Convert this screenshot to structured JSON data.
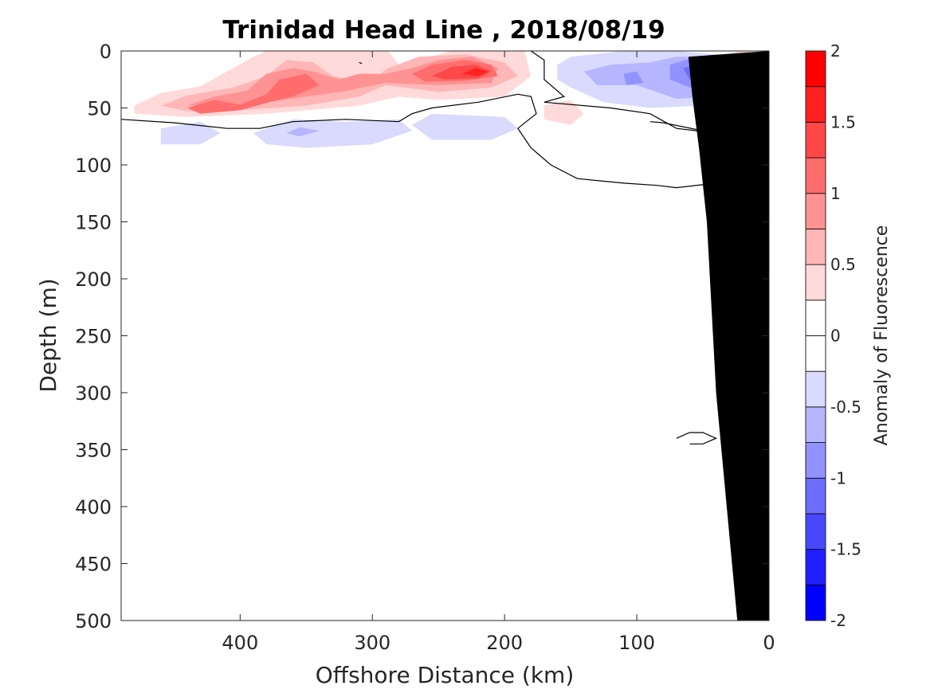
{
  "chart_data": {
    "type": "heatmap",
    "title": "Trinidad Head Line , 2018/08/19",
    "xlabel": "Offshore Distance (km)",
    "ylabel": "Depth (m)",
    "xlim": [
      490,
      0
    ],
    "ylim": [
      0,
      500
    ],
    "x_reversed": true,
    "y_reversed": true,
    "x_ticks": [
      400,
      300,
      200,
      100,
      0
    ],
    "y_ticks": [
      0,
      50,
      100,
      150,
      200,
      250,
      300,
      350,
      400,
      450,
      500
    ],
    "colorbar": {
      "label": "Anomaly of Fluorescence",
      "ticks": [
        2,
        1.5,
        1,
        0.5,
        0,
        -0.5,
        -1,
        -1.5,
        -2
      ],
      "levels": [
        -2,
        -1.75,
        -1.5,
        -1.25,
        -1,
        -0.75,
        -0.5,
        -0.25,
        0,
        0.25,
        0.5,
        0.75,
        1,
        1.25,
        1.5,
        1.75,
        2
      ],
      "colors": [
        "#0000ff",
        "#2020ff",
        "#4848ff",
        "#6d6dff",
        "#9292ff",
        "#b6b6ff",
        "#dadaff",
        "#ffffff",
        "#ffffff",
        "#ffdada",
        "#ffb6b6",
        "#ff9292",
        "#ff6d6d",
        "#ff4848",
        "#ff2020",
        "#ff0000"
      ]
    },
    "zero_contour_color": "#000000",
    "bathymetry_color": "#000000",
    "bathymetry": [
      [
        24,
        500
      ],
      [
        40,
        300
      ],
      [
        47,
        150
      ],
      [
        53,
        85
      ],
      [
        58,
        40
      ],
      [
        61,
        5
      ]
    ],
    "anomaly_regions": [
      {
        "level": 0.25,
        "polygon": [
          [
            480,
            48
          ],
          [
            460,
            37
          ],
          [
            430,
            31
          ],
          [
            410,
            18
          ],
          [
            390,
            5
          ],
          [
            380,
            0
          ],
          [
            288,
            0
          ],
          [
            280,
            12
          ],
          [
            265,
            8
          ],
          [
            240,
            0
          ],
          [
            185,
            0
          ],
          [
            180,
            22
          ],
          [
            200,
            40
          ],
          [
            250,
            43
          ],
          [
            280,
            40
          ],
          [
            310,
            48
          ],
          [
            380,
            55
          ],
          [
            440,
            58
          ],
          [
            480,
            55
          ]
        ]
      },
      {
        "level": 0.5,
        "polygon": [
          [
            460,
            48
          ],
          [
            440,
            39
          ],
          [
            405,
            32
          ],
          [
            380,
            22
          ],
          [
            365,
            8
          ],
          [
            345,
            10
          ],
          [
            330,
            22
          ],
          [
            300,
            28
          ],
          [
            290,
            16
          ],
          [
            265,
            5
          ],
          [
            230,
            3
          ],
          [
            200,
            10
          ],
          [
            190,
            22
          ],
          [
            210,
            32
          ],
          [
            250,
            36
          ],
          [
            290,
            30
          ],
          [
            310,
            40
          ],
          [
            350,
            48
          ],
          [
            400,
            52
          ],
          [
            440,
            53
          ]
        ]
      },
      {
        "level": 0.75,
        "polygon": [
          [
            440,
            48
          ],
          [
            420,
            40
          ],
          [
            395,
            35
          ],
          [
            380,
            20
          ],
          [
            360,
            15
          ],
          [
            345,
            18
          ],
          [
            325,
            25
          ],
          [
            310,
            20
          ],
          [
            290,
            20
          ],
          [
            270,
            15
          ],
          [
            250,
            8
          ],
          [
            225,
            5
          ],
          [
            205,
            15
          ],
          [
            210,
            28
          ],
          [
            250,
            30
          ],
          [
            290,
            28
          ],
          [
            320,
            35
          ],
          [
            380,
            45
          ],
          [
            410,
            48
          ]
        ]
      },
      {
        "level": 1.0,
        "polygon": [
          [
            440,
            50
          ],
          [
            420,
            43
          ],
          [
            400,
            47
          ],
          [
            380,
            38
          ],
          [
            370,
            25
          ],
          [
            350,
            20
          ],
          [
            340,
            30
          ],
          [
            360,
            40
          ],
          [
            378,
            45
          ],
          [
            400,
            52
          ],
          [
            430,
            55
          ]
        ]
      },
      {
        "level": 1.0,
        "polygon": [
          [
            270,
            20
          ],
          [
            255,
            12
          ],
          [
            230,
            8
          ],
          [
            210,
            12
          ],
          [
            205,
            22
          ],
          [
            230,
            26
          ],
          [
            260,
            27
          ]
        ]
      },
      {
        "level": 1.25,
        "polygon": [
          [
            255,
            22
          ],
          [
            240,
            14
          ],
          [
            222,
            12
          ],
          [
            210,
            18
          ],
          [
            220,
            24
          ],
          [
            245,
            25
          ]
        ]
      },
      {
        "level": 1.5,
        "polygon": [
          [
            232,
            20
          ],
          [
            222,
            15
          ],
          [
            212,
            18
          ],
          [
            220,
            22
          ]
        ]
      },
      {
        "level": 0.25,
        "polygon": [
          [
            170,
            48
          ],
          [
            150,
            43
          ],
          [
            140,
            55
          ],
          [
            150,
            65
          ],
          [
            170,
            60
          ]
        ]
      },
      {
        "level": -0.25,
        "polygon": [
          [
            160,
            12
          ],
          [
            150,
            5
          ],
          [
            110,
            0
          ],
          [
            70,
            0
          ],
          [
            20,
            5
          ],
          [
            20,
            40
          ],
          [
            50,
            48
          ],
          [
            90,
            50
          ],
          [
            125,
            45
          ],
          [
            150,
            32
          ],
          [
            160,
            25
          ]
        ]
      },
      {
        "level": -0.5,
        "polygon": [
          [
            140,
            18
          ],
          [
            120,
            12
          ],
          [
            90,
            10
          ],
          [
            70,
            5
          ],
          [
            35,
            5
          ],
          [
            25,
            25
          ],
          [
            40,
            40
          ],
          [
            70,
            42
          ],
          [
            100,
            30
          ],
          [
            130,
            30
          ]
        ]
      },
      {
        "level": -0.75,
        "polygon": [
          [
            110,
            20
          ],
          [
            100,
            18
          ],
          [
            95,
            28
          ],
          [
            108,
            30
          ]
        ]
      },
      {
        "level": -0.75,
        "polygon": [
          [
            75,
            12
          ],
          [
            55,
            5
          ],
          [
            35,
            5
          ],
          [
            28,
            18
          ],
          [
            40,
            30
          ],
          [
            60,
            32
          ],
          [
            75,
            25
          ]
        ]
      },
      {
        "level": -1.0,
        "polygon": [
          [
            65,
            15
          ],
          [
            48,
            10
          ],
          [
            35,
            10
          ],
          [
            32,
            20
          ],
          [
            45,
            25
          ],
          [
            60,
            25
          ]
        ]
      },
      {
        "level": -1.25,
        "polygon": [
          [
            55,
            18
          ],
          [
            45,
            12
          ],
          [
            37,
            15
          ],
          [
            42,
            22
          ],
          [
            52,
            22
          ]
        ]
      },
      {
        "level": -1.5,
        "polygon": [
          [
            46,
            20
          ],
          [
            40,
            13
          ],
          [
            35,
            17
          ],
          [
            40,
            23
          ]
        ]
      },
      {
        "level": -0.25,
        "polygon": [
          [
            460,
            68
          ],
          [
            430,
            62
          ],
          [
            415,
            72
          ],
          [
            430,
            82
          ],
          [
            460,
            82
          ]
        ]
      },
      {
        "level": -0.25,
        "polygon": [
          [
            390,
            72
          ],
          [
            360,
            60
          ],
          [
            320,
            62
          ],
          [
            280,
            60
          ],
          [
            270,
            70
          ],
          [
            300,
            82
          ],
          [
            350,
            85
          ],
          [
            380,
            82
          ]
        ]
      },
      {
        "level": -0.5,
        "polygon": [
          [
            365,
            72
          ],
          [
            355,
            67
          ],
          [
            340,
            70
          ],
          [
            355,
            75
          ]
        ]
      },
      {
        "level": -0.25,
        "polygon": [
          [
            270,
            65
          ],
          [
            255,
            55
          ],
          [
            200,
            58
          ],
          [
            190,
            68
          ],
          [
            210,
            78
          ],
          [
            255,
            78
          ]
        ]
      },
      {
        "level": 0.25,
        "polygon": [
          [
            25,
            0
          ],
          [
            15,
            0
          ],
          [
            12,
            5
          ],
          [
            20,
            8
          ],
          [
            28,
            5
          ]
        ]
      }
    ],
    "zero_contours": [
      [
        [
          490,
          60
        ],
        [
          450,
          63
        ],
        [
          410,
          68
        ],
        [
          385,
          68
        ],
        [
          360,
          62
        ],
        [
          320,
          60
        ],
        [
          280,
          62
        ],
        [
          270,
          55
        ],
        [
          255,
          50
        ],
        [
          220,
          45
        ],
        [
          190,
          38
        ],
        [
          180,
          40
        ],
        [
          176,
          55
        ],
        [
          190,
          68
        ],
        [
          180,
          85
        ],
        [
          165,
          100
        ],
        [
          145,
          112
        ],
        [
          110,
          116
        ],
        [
          85,
          118
        ],
        [
          70,
          120
        ],
        [
          40,
          116
        ],
        [
          10,
          113
        ],
        [
          0,
          110
        ],
        [
          -2,
          95
        ],
        [
          10,
          90
        ],
        [
          25,
          82
        ],
        [
          45,
          80
        ],
        [
          50,
          70
        ],
        [
          80,
          63
        ],
        [
          90,
          62
        ]
      ],
      [
        [
          180,
          0
        ],
        [
          170,
          8
        ],
        [
          170,
          25
        ],
        [
          155,
          40
        ],
        [
          170,
          45
        ],
        [
          120,
          50
        ],
        [
          90,
          55
        ],
        [
          70,
          68
        ],
        [
          55,
          70
        ],
        [
          40,
          80
        ],
        [
          20,
          72
        ],
        [
          10,
          60
        ],
        [
          2,
          58
        ]
      ],
      [
        [
          70,
          340
        ],
        [
          60,
          335
        ],
        [
          50,
          335
        ],
        [
          40,
          340
        ],
        [
          50,
          345
        ],
        [
          60,
          345
        ]
      ],
      [
        [
          310,
          10
        ],
        [
          308,
          11
        ]
      ]
    ],
    "zero_contours_note": ""
  }
}
